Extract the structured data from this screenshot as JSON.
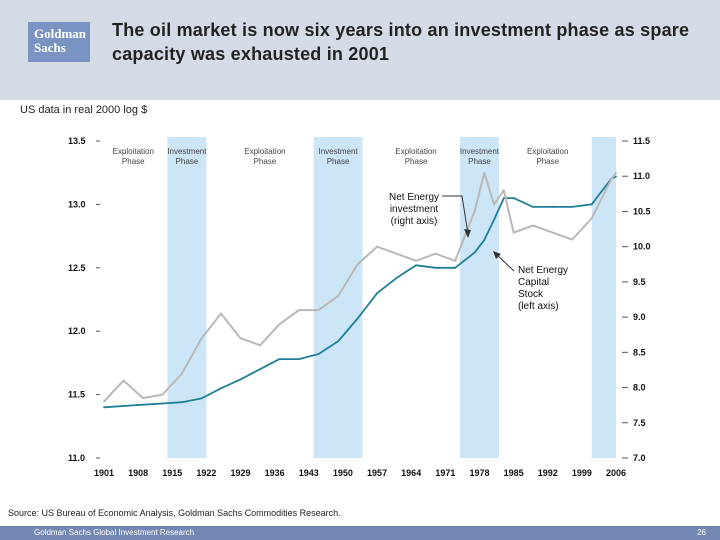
{
  "slide": {
    "logo_line1": "Goldman",
    "logo_line2": "Sachs",
    "title": "The oil market is now six years into an investment phase as spare capacity was exhausted in 2001",
    "subtitle": "US data in real 2000 log $",
    "source": "Source: US Bureau of Economic Analysis, Goldman Sachs Commodities Research.",
    "footer_left": "Goldman Sachs Global Investment Research",
    "page_number": "26"
  },
  "colors": {
    "header_bg": "#d5dbe6",
    "logo_bg": "#7b93c2",
    "footer_bg": "#7387b3",
    "band": "#cce6f7",
    "capital_stock": "#1e7f97",
    "investment": "#b8b8b8"
  },
  "chart_data": {
    "type": "line",
    "x": [
      1901,
      1905,
      1909,
      1913,
      1917,
      1921,
      1925,
      1929,
      1933,
      1937,
      1941,
      1945,
      1949,
      1953,
      1957,
      1961,
      1965,
      1969,
      1973,
      1977,
      1979,
      1981,
      1983,
      1985,
      1989,
      1993,
      1997,
      2001,
      2005,
      2006
    ],
    "xticks": [
      "1901",
      "1908",
      "1915",
      "1922",
      "1929",
      "1936",
      "1943",
      "1950",
      "1957",
      "1964",
      "1971",
      "1978",
      "1985",
      "1992",
      "1999",
      "2006"
    ],
    "xlim": [
      1901,
      2006
    ],
    "left_axis": {
      "label": "Net Energy Capital Stock (left axis)",
      "ticks": [
        "13.5",
        "13.0",
        "12.5",
        "12.0",
        "11.5",
        "11.0"
      ],
      "ylim": [
        11.0,
        13.5
      ]
    },
    "right_axis": {
      "label": "Net Energy investment (right axis)",
      "ticks": [
        "11.5",
        "11.0",
        "10.5",
        "10.0",
        "9.5",
        "9.0",
        "8.5",
        "8.0",
        "7.5",
        "7.0"
      ],
      "ylim": [
        7.0,
        11.5
      ]
    },
    "series": [
      {
        "name": "Net Energy Capital Stock",
        "axis": "left",
        "values": [
          11.4,
          11.41,
          11.42,
          11.43,
          11.44,
          11.47,
          11.55,
          11.62,
          11.7,
          11.78,
          11.78,
          11.82,
          11.92,
          12.1,
          12.3,
          12.42,
          12.52,
          12.5,
          12.5,
          12.62,
          12.72,
          12.88,
          13.05,
          13.05,
          12.98,
          12.98,
          12.98,
          13.0,
          13.2,
          13.22
        ]
      },
      {
        "name": "Net Energy investment",
        "axis": "right",
        "values": [
          7.8,
          8.1,
          7.85,
          7.9,
          8.2,
          8.7,
          9.05,
          8.7,
          8.6,
          8.9,
          9.1,
          9.1,
          9.3,
          9.75,
          10.0,
          9.9,
          9.8,
          9.9,
          9.8,
          10.5,
          11.05,
          10.6,
          10.8,
          10.2,
          10.3,
          10.2,
          10.1,
          10.4,
          10.95,
          11.05
        ]
      }
    ],
    "bands": [
      {
        "start": 1914,
        "end": 1922,
        "label": "Investment Phase"
      },
      {
        "start": 1944,
        "end": 1954,
        "label": "Investment Phase"
      },
      {
        "start": 1974,
        "end": 1982,
        "label": "Investment Phase"
      },
      {
        "start": 2001,
        "end": 2006,
        "label": ""
      }
    ],
    "phase_labels": [
      {
        "year": 1907,
        "line1": "Exploitation",
        "line2": "Phase"
      },
      {
        "year": 1918,
        "line1": "Investment",
        "line2": "Phase"
      },
      {
        "year": 1934,
        "line1": "Exploitation",
        "line2": "Phase"
      },
      {
        "year": 1949,
        "line1": "Investment",
        "line2": "Phase"
      },
      {
        "year": 1965,
        "line1": "Exploitation",
        "line2": "Phase"
      },
      {
        "year": 1978,
        "line1": "Investment",
        "line2": "Phase"
      },
      {
        "year": 1992,
        "line1": "Exploitation",
        "line2": "Phase"
      }
    ],
    "annotations": [
      {
        "lines": [
          "Net Energy",
          "investment",
          "(right axis)"
        ]
      },
      {
        "lines": [
          "Net Energy",
          "Capital",
          "Stock",
          "(left axis)"
        ]
      }
    ]
  }
}
